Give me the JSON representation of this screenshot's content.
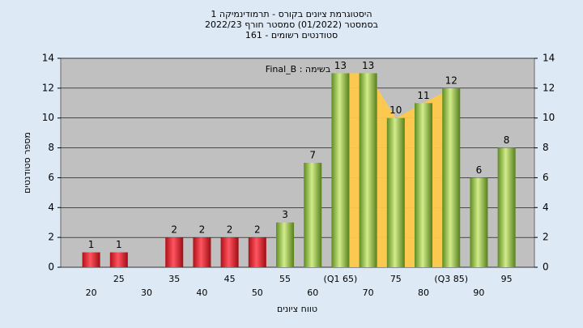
{
  "chart_data": {
    "type": "bar",
    "title": [
      "היסטוגרמת ציונים בקורס - תרמודינמיקה 1",
      "בסמסטר  (01/2022)  סמסטר חורף 2022/23",
      "סטודנטים רשומים - 161"
    ],
    "annotation": "Final_B : בשימה",
    "xlabel": "טווח ציונים",
    "ylabel": "מספר סטודנטים",
    "categories": [
      "20",
      "25",
      "30",
      "35",
      "40",
      "45",
      "50",
      "55",
      "60",
      "(Q1 65)",
      "70",
      "75",
      "80",
      "(Q3 85)",
      "90",
      "95"
    ],
    "values": [
      1,
      1,
      0,
      2,
      2,
      2,
      2,
      3,
      7,
      13,
      13,
      10,
      11,
      12,
      6,
      8
    ],
    "colors": [
      "#e0202a",
      "#e0202a",
      "#e0202a",
      "#e0202a",
      "#e0202a",
      "#e0202a",
      "#e0202a",
      "#8cc63f",
      "#8cc63f",
      "#8cc63f",
      "#8cc63f",
      "#8cc63f",
      "#8cc63f",
      "#8cc63f",
      "#8cc63f",
      "#8cc63f"
    ],
    "ylim": [
      0,
      14
    ],
    "yticks": [
      0,
      2,
      4,
      6,
      8,
      10,
      12,
      14
    ],
    "grid": true
  }
}
